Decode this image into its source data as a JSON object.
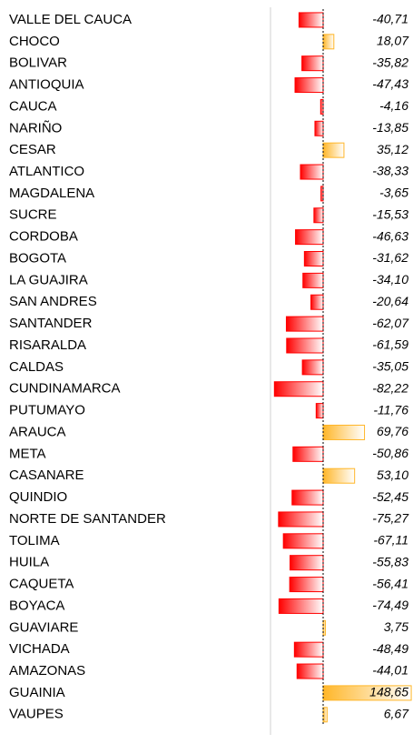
{
  "chart_data": {
    "type": "bar",
    "orientation": "horizontal",
    "categories": [
      "VALLE DEL CAUCA",
      "CHOCO",
      "BOLIVAR",
      "ANTIOQUIA",
      "CAUCA",
      "NARIÑO",
      "CESAR",
      "ATLANTICO",
      "MAGDALENA",
      "SUCRE",
      "CORDOBA",
      "BOGOTA",
      "LA GUAJIRA",
      "SAN ANDRES",
      "SANTANDER",
      "RISARALDA",
      "CALDAS",
      "CUNDINAMARCA",
      "PUTUMAYO",
      "ARAUCA",
      "META",
      "CASANARE",
      "QUINDIO",
      "NORTE DE SANTANDER",
      "TOLIMA",
      "HUILA",
      "CAQUETA",
      "BOYACA",
      "GUAVIARE",
      "VICHADA",
      "AMAZONAS",
      "GUAINIA",
      "VAUPES"
    ],
    "values": [
      -40.71,
      18.07,
      -35.82,
      -47.43,
      -4.16,
      -13.85,
      35.12,
      -38.33,
      -3.65,
      -15.53,
      -46.63,
      -31.62,
      -34.1,
      -20.64,
      -62.07,
      -61.59,
      -35.05,
      -82.22,
      -11.76,
      69.76,
      -50.86,
      53.1,
      -52.45,
      -75.27,
      -67.11,
      -55.83,
      -56.41,
      -74.49,
      3.75,
      -48.49,
      -44.01,
      148.65,
      6.67
    ],
    "value_labels": [
      "-40,71",
      "18,07",
      "-35,82",
      "-47,43",
      "-4,16",
      "-13,85",
      "35,12",
      "-38,33",
      "-3,65",
      "-15,53",
      "-46,63",
      "-31,62",
      "-34,10",
      "-20,64",
      "-62,07",
      "-61,59",
      "-35,05",
      "-82,22",
      "-11,76",
      "69,76",
      "-50,86",
      "53,10",
      "-52,45",
      "-75,27",
      "-67,11",
      "-55,83",
      "-56,41",
      "-74,49",
      "3,75",
      "-48,49",
      "-44,01",
      "148,65",
      "6,67"
    ],
    "negative_color": "#ff0000",
    "positive_color": "#ffb628"
  }
}
